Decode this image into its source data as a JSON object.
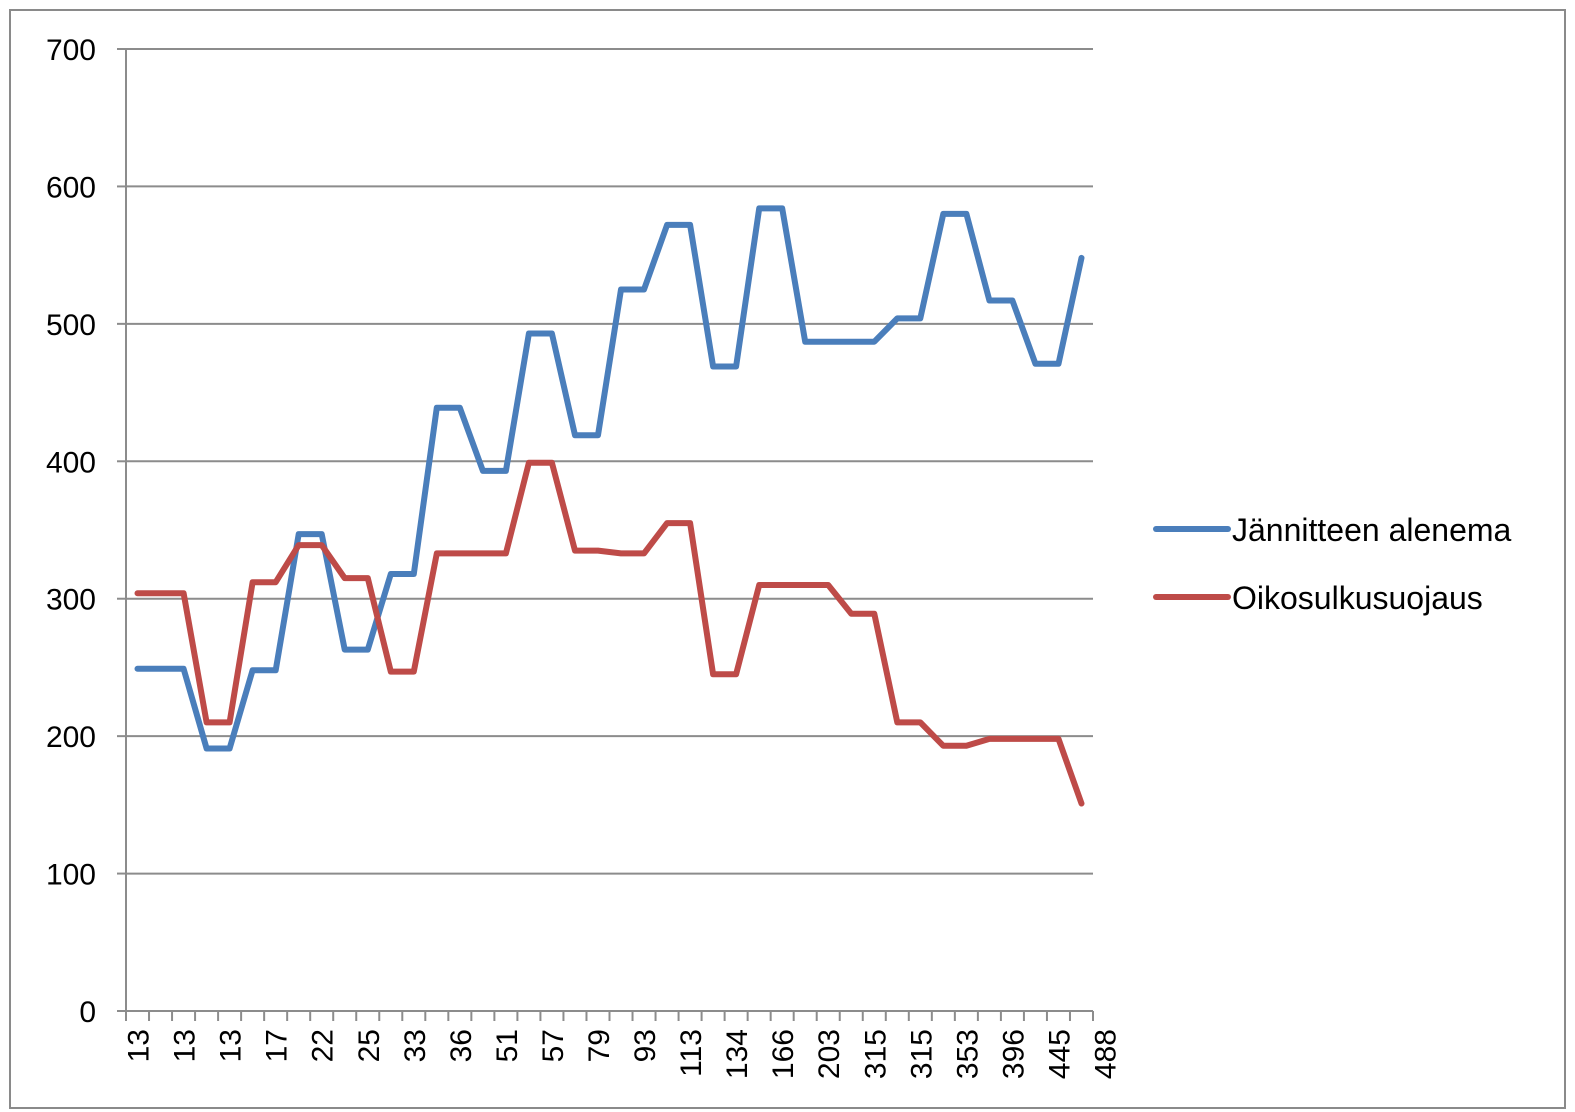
{
  "chart_data": {
    "type": "line",
    "x_tick_labels": [
      "13",
      "13",
      "13",
      "17",
      "22",
      "25",
      "33",
      "36",
      "51",
      "57",
      "79",
      "93",
      "113",
      "134",
      "166",
      "203",
      "315",
      "315",
      "353",
      "396",
      "445",
      "488"
    ],
    "ylim": [
      0,
      700
    ],
    "y_ticks": [
      0,
      100,
      200,
      300,
      400,
      500,
      600,
      700
    ],
    "grid": true,
    "legend_position": "right",
    "series": [
      {
        "name": "Jännitteen alenema",
        "color": "#4a7ebb",
        "values": [
          249,
          249,
          249,
          191,
          191,
          248,
          248,
          347,
          347,
          263,
          263,
          318,
          318,
          439,
          439,
          393,
          393,
          493,
          493,
          419,
          419,
          525,
          525,
          572,
          572,
          469,
          469,
          584,
          584,
          487,
          487,
          487,
          487,
          504,
          504,
          580,
          580,
          517,
          517,
          471,
          471,
          548
        ]
      },
      {
        "name": "Oikosulkusuojaus",
        "color": "#be4b48",
        "values": [
          304,
          304,
          304,
          210,
          210,
          312,
          312,
          339,
          339,
          315,
          315,
          247,
          247,
          333,
          333,
          333,
          333,
          399,
          399,
          335,
          335,
          333,
          333,
          355,
          355,
          245,
          245,
          310,
          310,
          310,
          310,
          289,
          289,
          210,
          210,
          193,
          193,
          198,
          198,
          198,
          198,
          151
        ]
      }
    ]
  }
}
